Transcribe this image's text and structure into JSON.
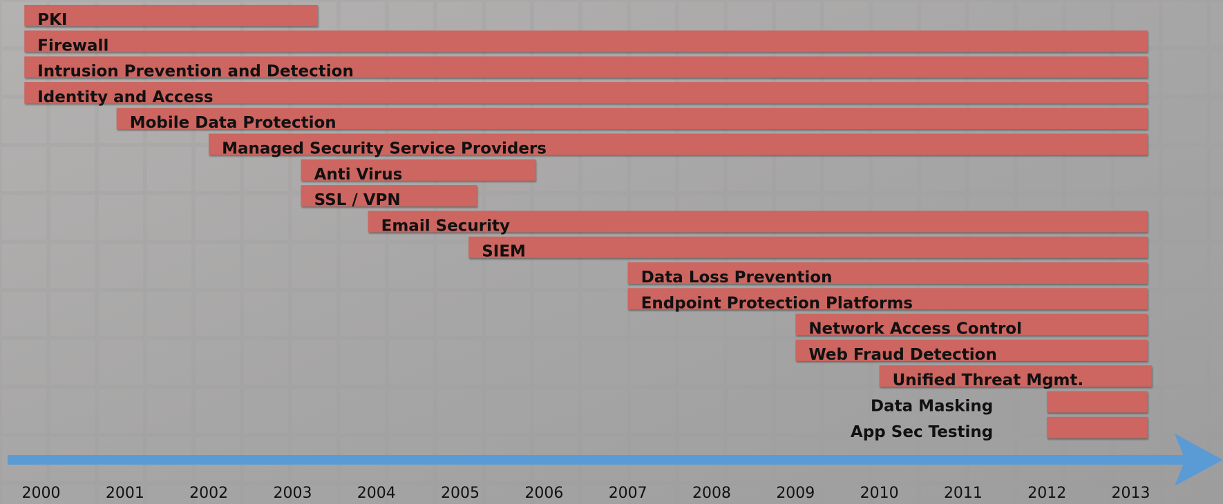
{
  "chart_data": {
    "type": "gantt",
    "color": "#cd6560",
    "axis_color": "#5b9bd5",
    "xlim": [
      1999.6,
      2014.1
    ],
    "xticks": [
      2000,
      2001,
      2002,
      2003,
      2004,
      2005,
      2006,
      2007,
      2008,
      2009,
      2010,
      2011,
      2012,
      2013
    ],
    "tasks": [
      {
        "name": "PKI",
        "start": 1999.8,
        "end": 2003.3
      },
      {
        "name": "Firewall",
        "start": 1999.8,
        "end": 2013.2
      },
      {
        "name": "Intrusion Prevention and Detection",
        "start": 1999.8,
        "end": 2013.2
      },
      {
        "name": "Identity and Access",
        "start": 1999.8,
        "end": 2013.2
      },
      {
        "name": "Mobile Data Protection",
        "start": 2000.9,
        "end": 2013.2
      },
      {
        "name": "Managed Security Service Providers",
        "start": 2002.0,
        "end": 2013.2
      },
      {
        "name": "Anti Virus",
        "start": 2003.1,
        "end": 2005.9
      },
      {
        "name": "SSL / VPN",
        "start": 2003.1,
        "end": 2005.2
      },
      {
        "name": "Email Security",
        "start": 2003.9,
        "end": 2013.2
      },
      {
        "name": "SIEM",
        "start": 2005.1,
        "end": 2013.2
      },
      {
        "name": "Data Loss Prevention",
        "start": 2007.0,
        "end": 2013.2
      },
      {
        "name": "Endpoint Protection Platforms",
        "start": 2007.0,
        "end": 2013.2
      },
      {
        "name": "Network Access Control",
        "start": 2009.0,
        "end": 2013.2
      },
      {
        "name": "Web Fraud Detection",
        "start": 2009.0,
        "end": 2013.2
      },
      {
        "name": "Unified Threat Mgmt.",
        "start": 2010.0,
        "end": 2013.25
      },
      {
        "name": "Data Masking",
        "start": 2012.0,
        "end": 2013.2
      },
      {
        "name": "App Sec Testing",
        "start": 2012.0,
        "end": 2013.2
      }
    ]
  }
}
